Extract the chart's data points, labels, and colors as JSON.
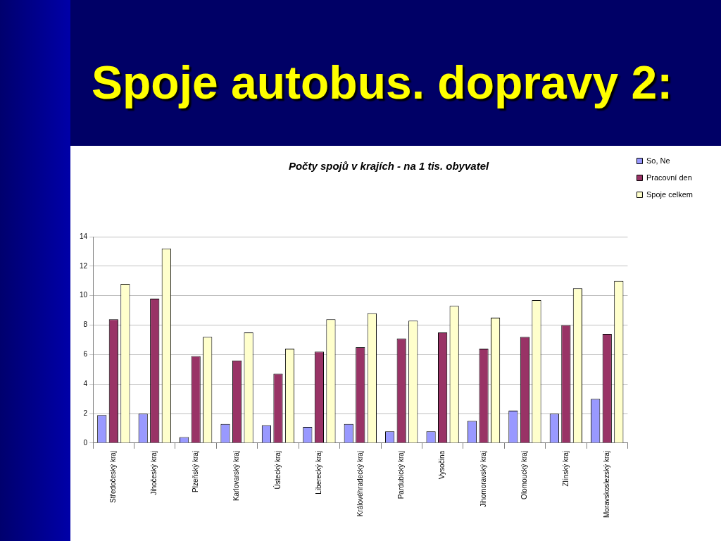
{
  "chart_data": {
    "type": "bar",
    "title": "Spoje autobus. dopravy 2:",
    "subtitle": "Počty spojů v krajích - na 1 tis. obyvatel",
    "categories": [
      "Středočeský kraj",
      "Jihočeský kraj",
      "Plzeňský kraj",
      "Karlovarský kraj",
      "Ústecký kraj",
      "Liberecký kraj",
      "Královéhradecký kraj",
      "Pardubický kraj",
      "Vysočina",
      "Jihomoravský kraj",
      "Olomoucký kraj",
      "Zlínský kraj",
      "Moravskoslezský kraj"
    ],
    "series": [
      {
        "name": "So, Ne",
        "color": "#9999ff",
        "values": [
          1.9,
          2.0,
          0.4,
          1.3,
          1.2,
          1.1,
          1.3,
          0.8,
          0.8,
          1.5,
          2.2,
          2.0,
          3.0
        ]
      },
      {
        "name": "Pracovní den",
        "color": "#993366",
        "values": [
          8.4,
          9.8,
          5.9,
          5.6,
          4.7,
          6.2,
          6.5,
          7.1,
          7.5,
          6.4,
          7.2,
          8.0,
          7.4
        ]
      },
      {
        "name": "Spoje celkem",
        "color": "#ffffcc",
        "values": [
          10.8,
          13.2,
          7.2,
          7.5,
          6.4,
          8.4,
          8.8,
          8.3,
          9.3,
          8.5,
          9.7,
          10.5,
          11.0
        ]
      }
    ],
    "ylim": [
      0,
      14
    ],
    "yticks": [
      0,
      2,
      4,
      6,
      8,
      10,
      12,
      14
    ],
    "grid": "y",
    "legend": "top right"
  }
}
